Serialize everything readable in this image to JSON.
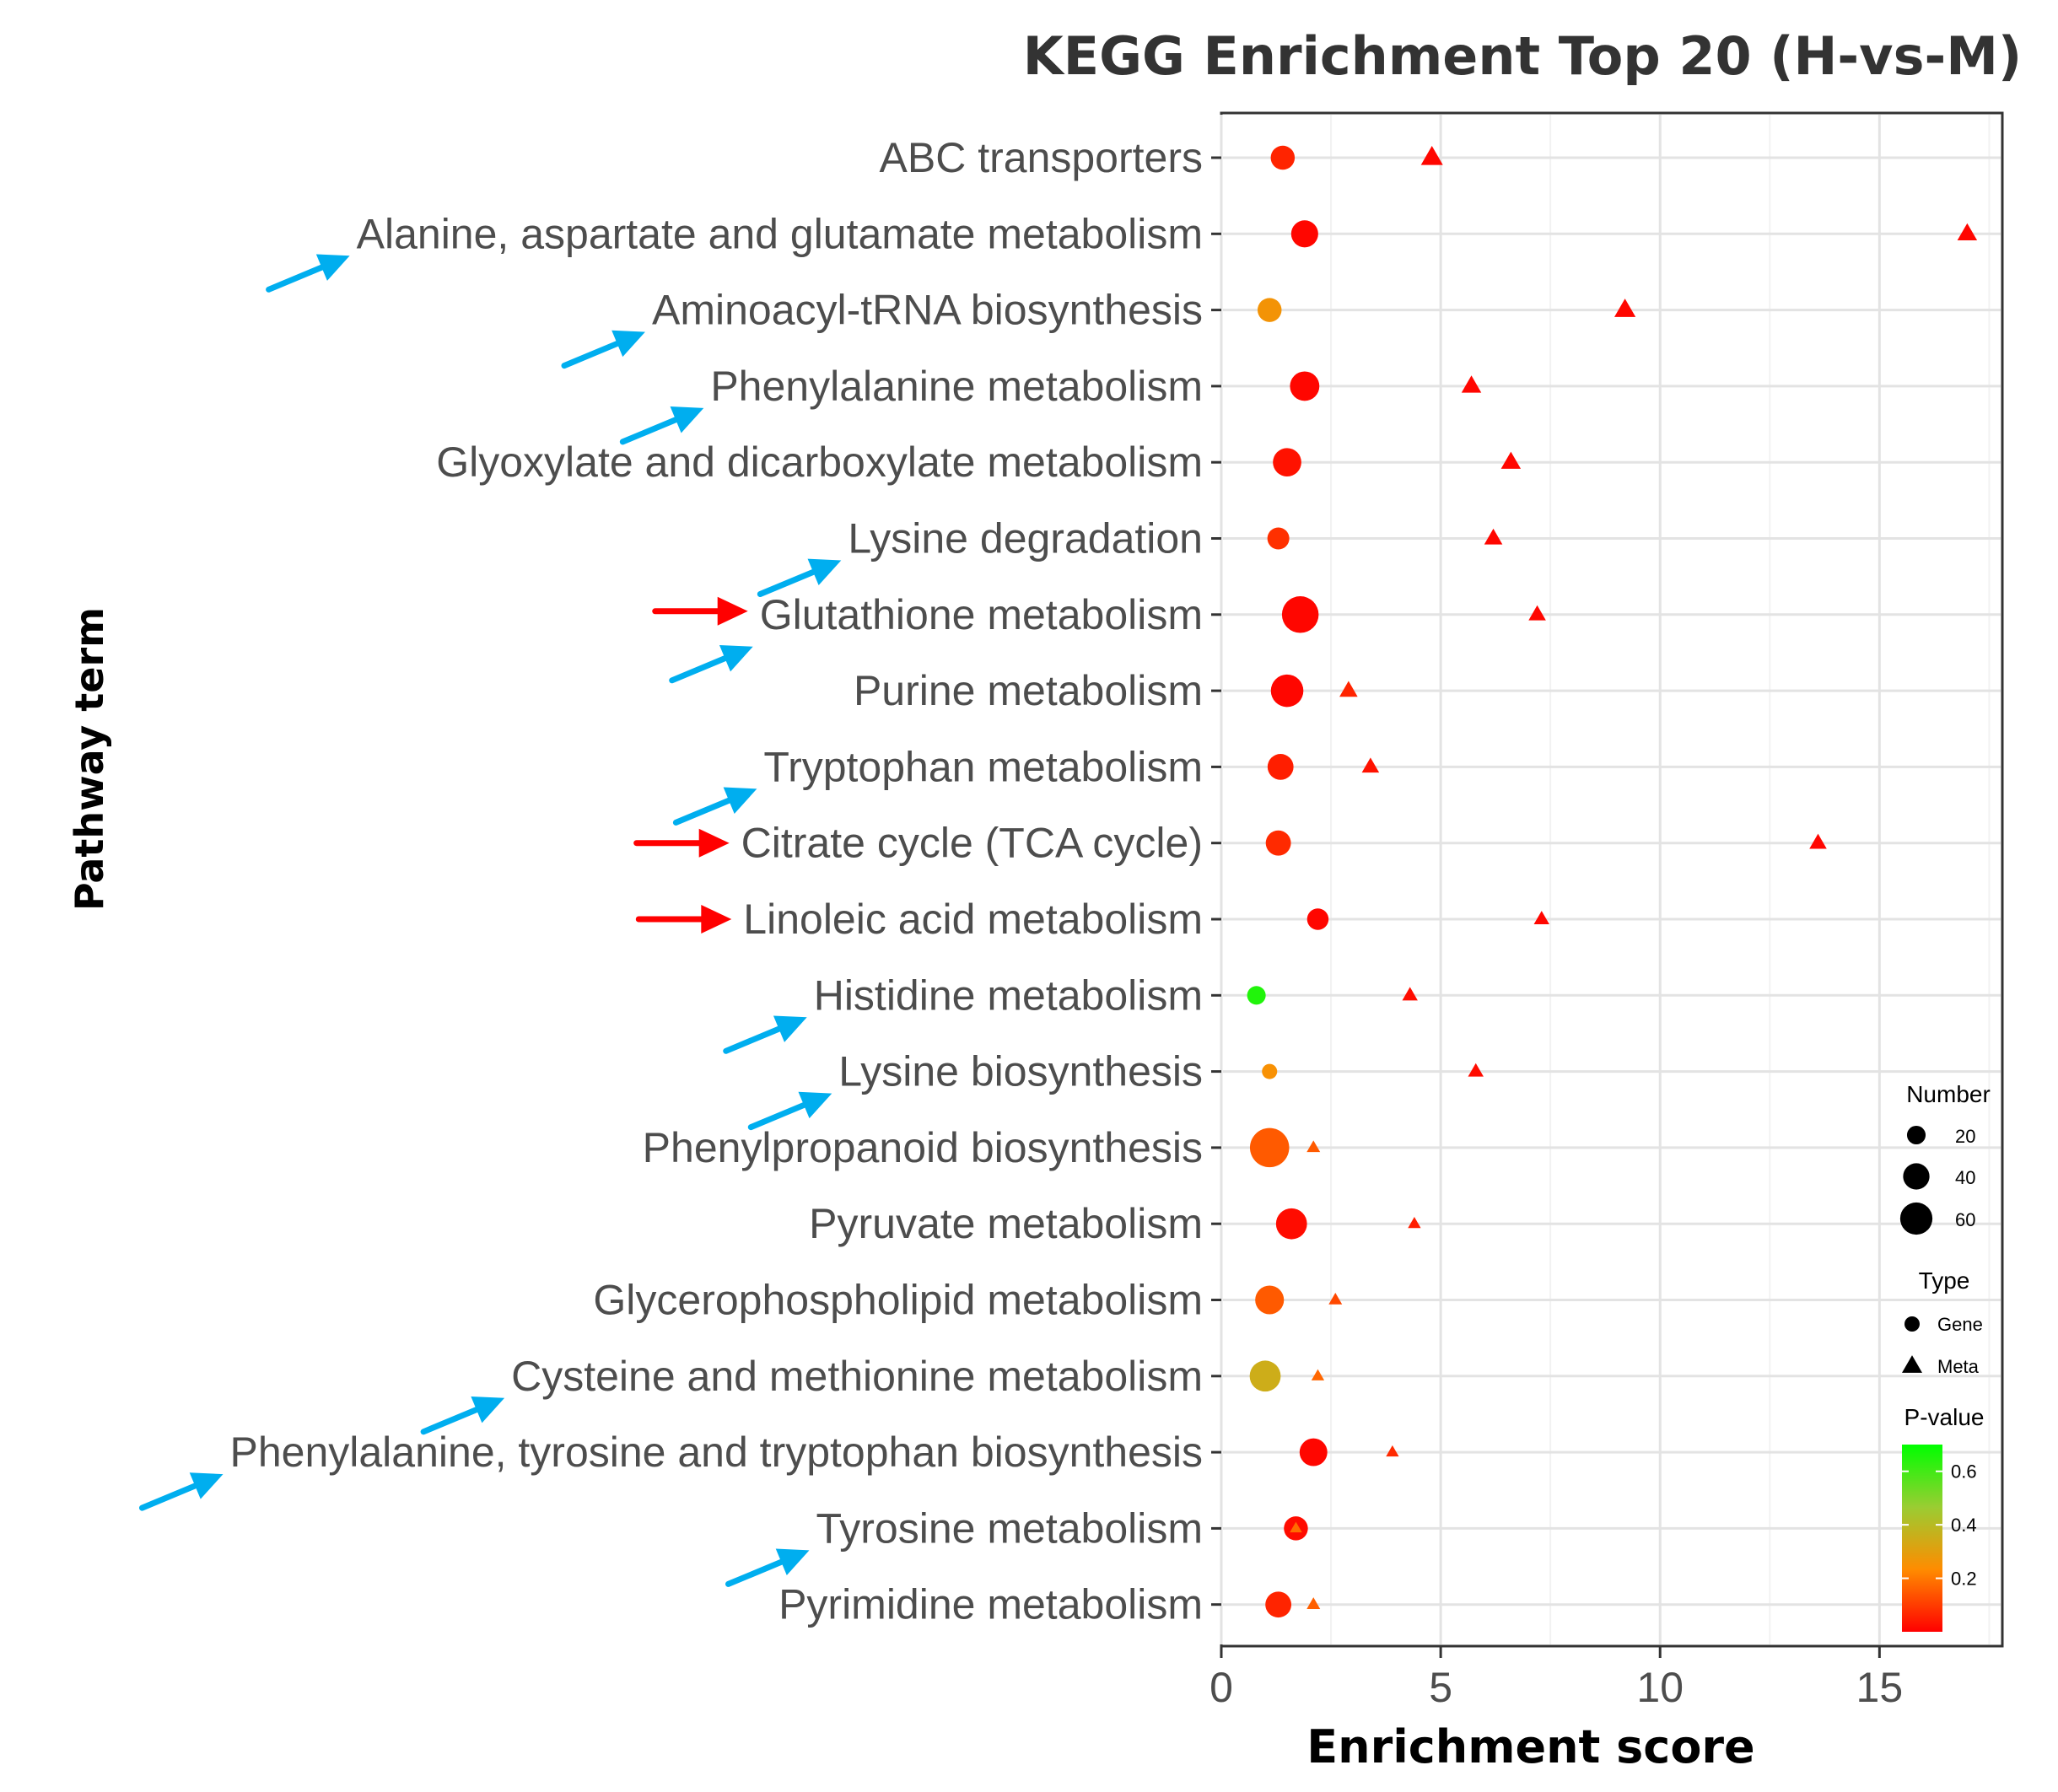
{
  "chart_data": {
    "type": "scatter",
    "title": "KEGG Enrichment Top 20 (H-vs-M)",
    "xlabel": "Enrichment score",
    "ylabel": "Pathway term",
    "xlim": [
      0,
      17.8
    ],
    "xticks": [
      0,
      5,
      10,
      15
    ],
    "grid": true,
    "categories": [
      "ABC transporters",
      "Alanine, aspartate and glutamate metabolism",
      "Aminoacyl-tRNA biosynthesis",
      "Phenylalanine metabolism",
      "Glyoxylate and dicarboxylate metabolism",
      "Lysine degradation",
      "Glutathione metabolism",
      "Purine metabolism",
      "Tryptophan metabolism",
      "Citrate cycle (TCA cycle)",
      "Linoleic acid metabolism",
      "Histidine metabolism",
      "Lysine biosynthesis",
      "Phenylpropanoid biosynthesis",
      "Pyruvate metabolism",
      "Glycerophospholipid metabolism",
      "Cysteine and methionine metabolism",
      "Phenylalanine, tyrosine and tryptophan biosynthesis",
      "Tyrosine metabolism",
      "Pyrimidine metabolism"
    ],
    "series": [
      {
        "name": "Gene",
        "shape": "circle",
        "enrichment": [
          1.4,
          1.9,
          1.1,
          1.9,
          1.5,
          1.3,
          1.8,
          1.5,
          1.35,
          1.3,
          2.2,
          0.8,
          1.1,
          1.1,
          1.6,
          1.1,
          1.0,
          2.1,
          1.7,
          1.3
        ],
        "number": [
          30,
          38,
          30,
          45,
          42,
          25,
          70,
          55,
          35,
          33,
          24,
          18,
          12,
          80,
          50,
          43,
          50,
          40,
          30,
          35
        ],
        "pvalue": [
          0.06,
          0.01,
          0.26,
          0.01,
          0.03,
          0.08,
          0.01,
          0.01,
          0.05,
          0.07,
          0.01,
          0.65,
          0.25,
          0.15,
          0.02,
          0.15,
          0.35,
          0.01,
          0.02,
          0.06
        ]
      },
      {
        "name": "Meta",
        "shape": "triangle",
        "enrichment": [
          4.8,
          17.0,
          9.2,
          5.7,
          6.6,
          6.2,
          7.2,
          2.9,
          3.4,
          13.6,
          7.3,
          4.3,
          5.8,
          2.1,
          4.4,
          2.6,
          2.2,
          3.9,
          1.7,
          2.1
        ],
        "number": [
          32,
          26,
          30,
          26,
          26,
          22,
          20,
          22,
          20,
          20,
          16,
          16,
          16,
          12,
          11,
          12,
          11,
          11,
          10,
          12
        ],
        "pvalue": [
          0.01,
          0.01,
          0.01,
          0.01,
          0.01,
          0.01,
          0.01,
          0.06,
          0.03,
          0.01,
          0.01,
          0.02,
          0.02,
          0.15,
          0.05,
          0.12,
          0.17,
          0.07,
          0.18,
          0.16
        ]
      }
    ],
    "legend": {
      "position": "bottom-right",
      "number_title": "Number",
      "number_entries": [
        20,
        40,
        60
      ],
      "type_title": "Type",
      "type_entries": [
        "Gene",
        "Meta"
      ],
      "pvalue_title": "P-value",
      "pvalue_ticks": [
        0.6,
        0.4,
        0.2
      ],
      "pvalue_range": [
        0,
        0.7
      ],
      "gradient": [
        "#ff0000",
        "#ff8c00",
        "#9acd32",
        "#00ff00"
      ]
    },
    "annotations": {
      "blue_arrows": [
        "Alanine, aspartate and glutamate metabolism",
        "Aminoacyl-tRNA biosynthesis",
        "Phenylalanine metabolism",
        "Lysine degradation",
        "Glutathione metabolism",
        "Tryptophan metabolism",
        "Histidine metabolism",
        "Lysine biosynthesis",
        "Cysteine and methionine metabolism",
        "Phenylalanine, tyrosine and tryptophan biosynthesis",
        "Tyrosine metabolism"
      ],
      "red_arrows": [
        "Glutathione metabolism",
        "Citrate cycle (TCA cycle)",
        "Linoleic acid metabolism"
      ],
      "blue_color": "#00aeef",
      "red_color": "#ff0000"
    }
  }
}
